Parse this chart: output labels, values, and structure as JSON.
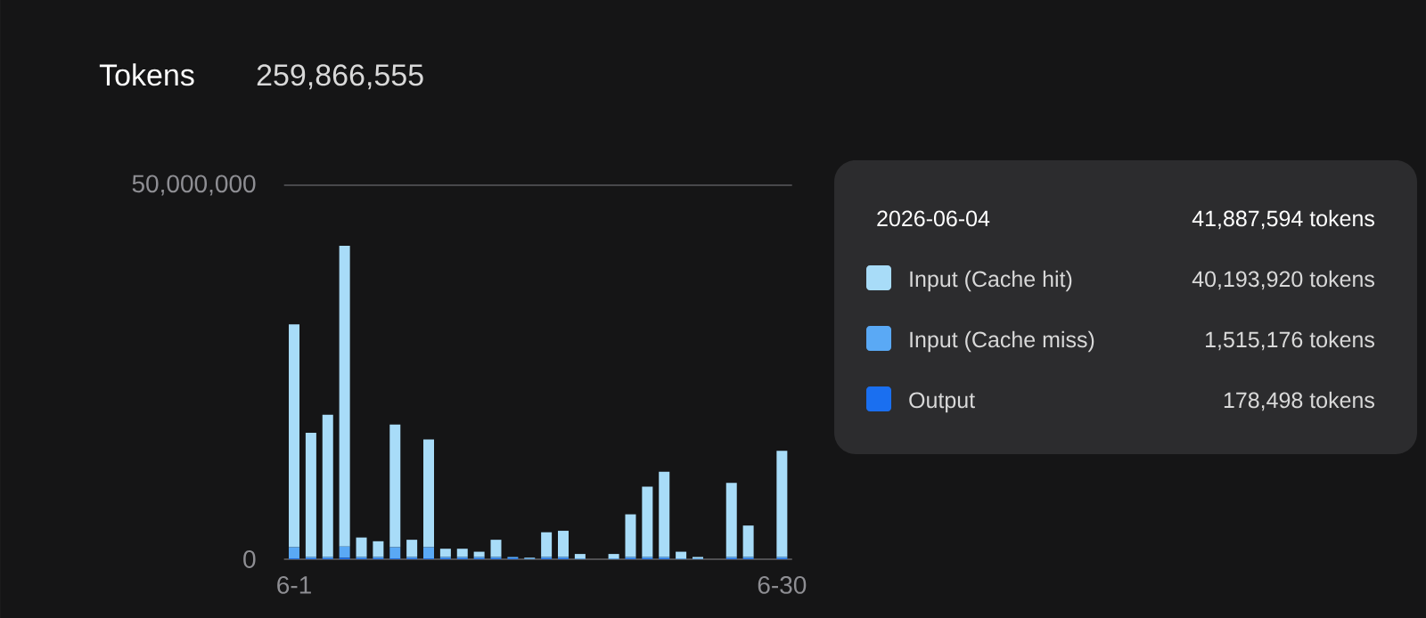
{
  "chart_data": {
    "type": "bar",
    "title": "Tokens",
    "subtitle": "259,866,555",
    "categories": [
      "6-1",
      null,
      null,
      null,
      null,
      null,
      null,
      null,
      null,
      null,
      null,
      null,
      null,
      null,
      null,
      null,
      null,
      null,
      null,
      null,
      null,
      null,
      null,
      null,
      null,
      null,
      null,
      null,
      null,
      "6-30"
    ],
    "stacked": true,
    "series": [
      {
        "name": "Output",
        "color": "#1a6ff0",
        "values": [
          100000,
          100000,
          100000,
          178498,
          100000,
          100000,
          100000,
          100000,
          100000,
          100000,
          100000,
          100000,
          100000,
          100000,
          0,
          100000,
          100000,
          0,
          0,
          0,
          100000,
          100000,
          100000,
          0,
          0,
          0,
          100000,
          100000,
          0,
          100000
        ]
      },
      {
        "name": "Input (Cache miss)",
        "color": "#5aa9f5",
        "values": [
          1500000,
          200000,
          200000,
          1515176,
          200000,
          200000,
          1500000,
          200000,
          1500000,
          200000,
          200000,
          200000,
          200000,
          200000,
          100000,
          200000,
          200000,
          100000,
          0,
          100000,
          200000,
          200000,
          200000,
          100000,
          100000,
          0,
          200000,
          200000,
          0,
          200000
        ]
      },
      {
        "name": "Input (Cache hit)",
        "color": "#a8dcf8",
        "values": [
          29800000,
          16600000,
          19000000,
          40193920,
          2600000,
          2100000,
          16400000,
          2300000,
          14400000,
          1100000,
          1100000,
          700000,
          2300000,
          0,
          100000,
          3300000,
          3500000,
          600000,
          0,
          600000,
          5700000,
          9400000,
          11400000,
          900000,
          200000,
          0,
          9900000,
          4200000,
          0,
          14200000
        ]
      }
    ],
    "ylim": [
      0,
      50000000
    ],
    "yticks": [
      0,
      {
        "value": 50000000,
        "label": "50,000,000"
      }
    ],
    "grid": "y",
    "legend": "right",
    "annotations": [
      "2026-06-04",
      "41,887,594 tokens",
      "40,193,920 tokens",
      "1,515,176 tokens",
      "178,498 tokens"
    ]
  }
}
